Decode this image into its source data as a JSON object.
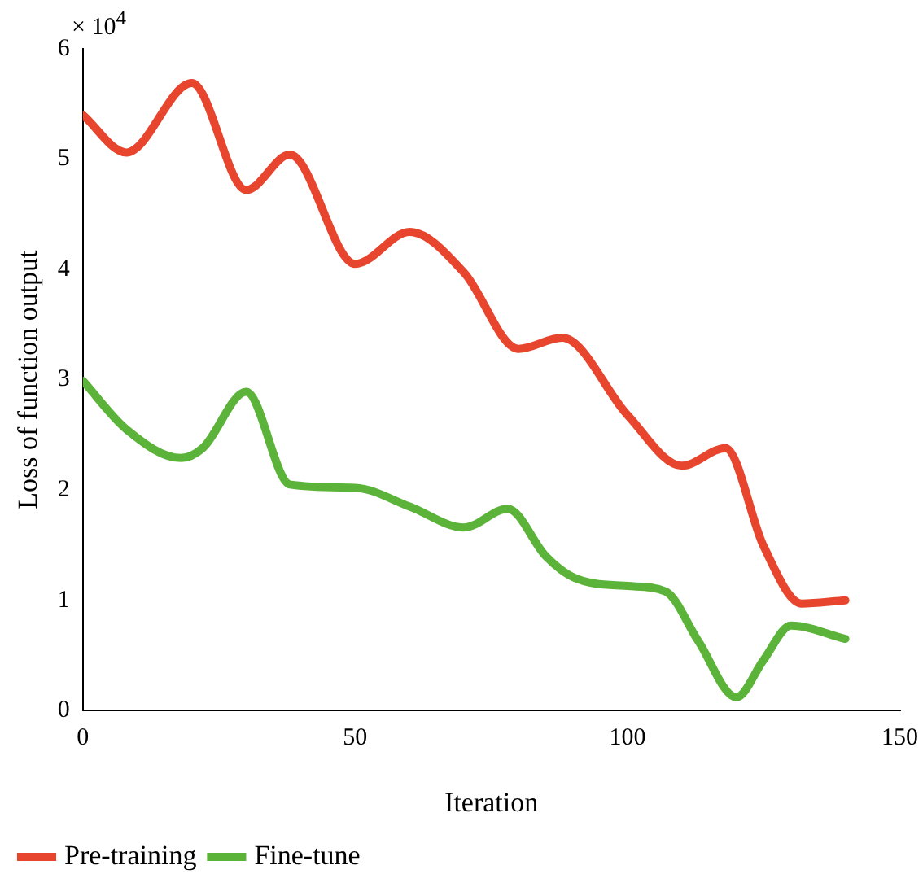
{
  "chart_data": {
    "type": "line",
    "xlabel": "Iteration",
    "ylabel": "Loss of function output",
    "annotations": [
      "× 10$^{4}$"
    ],
    "xlim": [
      0,
      150
    ],
    "xticks": [
      0,
      50,
      100,
      150
    ],
    "ylim": [
      0,
      6
    ],
    "yticks": [
      0,
      1,
      2,
      3,
      4,
      5,
      6
    ],
    "grid": false,
    "legend": "bottom",
    "marker": "none",
    "series": [
      {
        "name": "Pre-training",
        "color": "#e8452f",
        "x": [
          0,
          8,
          20,
          30,
          38,
          50,
          60,
          70,
          80,
          88,
          100,
          110,
          118,
          125,
          132,
          140
        ],
        "values": [
          5.4,
          5.06,
          5.69,
          4.72,
          5.04,
          4.05,
          4.34,
          3.97,
          3.28,
          3.38,
          2.68,
          2.22,
          2.38,
          1.49,
          0.97,
          1.0
        ]
      },
      {
        "name": "Fine-tune",
        "color": "#5cb33a",
        "x": [
          0,
          8,
          18,
          22,
          30,
          38,
          50,
          60,
          70,
          78,
          85,
          90,
          100,
          107,
          113,
          120,
          125,
          130,
          140
        ],
        "values": [
          2.99,
          2.55,
          2.29,
          2.38,
          2.89,
          2.05,
          2.02,
          1.85,
          1.66,
          1.83,
          1.4,
          1.21,
          1.13,
          1.08,
          0.63,
          0.12,
          0.46,
          0.77,
          0.65
        ]
      }
    ]
  }
}
